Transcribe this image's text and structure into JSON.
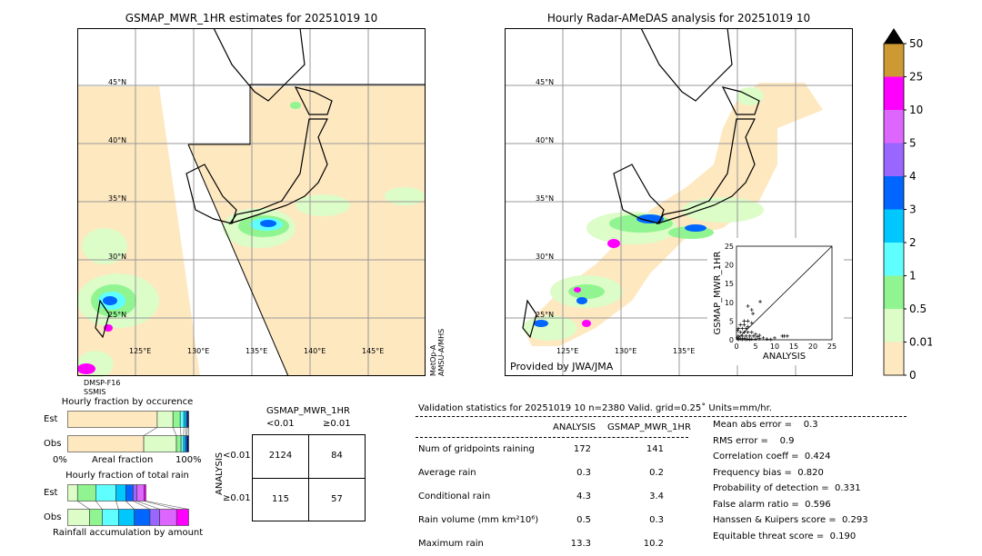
{
  "left_map": {
    "title": "GSMAP_MWR_1HR estimates for 20251019 10",
    "lat_labels": [
      "45°N",
      "40°N",
      "35°N",
      "30°N",
      "25°N"
    ],
    "lon_labels": [
      "125°E",
      "130°E",
      "135°E",
      "140°E",
      "145°E"
    ],
    "sensor_left": [
      "DMSP-F16",
      "SSMIS"
    ],
    "sensor_right": [
      "MetOp-A",
      "AMSU-A/MHS"
    ]
  },
  "right_map": {
    "title": "Hourly Radar-AMeDAS analysis for 20251019 10",
    "lat_labels": [
      "45°N",
      "40°N",
      "35°N",
      "30°N",
      "25°N"
    ],
    "lon_labels": [
      "125°E",
      "130°E",
      "135°E"
    ],
    "credit": "Provided by JWA/JMA"
  },
  "colorbar": {
    "levels": [
      "0",
      "0.01",
      "0.5",
      "1",
      "2",
      "3",
      "4",
      "5",
      "10",
      "25",
      "50"
    ],
    "colors": [
      "#fee8c0",
      "#dcfcc8",
      "#90f590",
      "#60ffff",
      "#00c8ff",
      "#0066ff",
      "#9966ff",
      "#dd66ff",
      "#ff00ff",
      "#cc9933"
    ],
    "extend_color": "#000000"
  },
  "chart_data": [
    {
      "type": "scatter",
      "xlabel": "ANALYSIS",
      "ylabel": "GSMAP_MWR_1HR",
      "xlim": [
        0,
        25
      ],
      "ylim": [
        0,
        25
      ],
      "xticks": [
        "0",
        "5",
        "10",
        "15",
        "20",
        "25"
      ],
      "yticks": [
        "0",
        "5",
        "10",
        "15",
        "20",
        "25"
      ],
      "points": [
        [
          6.2,
          10.2
        ],
        [
          3,
          9
        ],
        [
          4,
          8
        ],
        [
          4.3,
          7
        ],
        [
          2,
          5
        ],
        [
          3,
          5
        ],
        [
          4,
          4.5
        ],
        [
          1,
          4
        ],
        [
          2,
          4
        ],
        [
          3,
          3.5
        ],
        [
          0.5,
          3
        ],
        [
          1.5,
          3
        ],
        [
          2.5,
          3
        ],
        [
          0.3,
          2.5
        ],
        [
          1,
          2
        ],
        [
          2,
          2
        ],
        [
          3,
          2
        ],
        [
          4,
          2
        ],
        [
          5,
          1.5
        ],
        [
          6,
          1.2
        ],
        [
          0.5,
          1
        ],
        [
          1.5,
          1
        ],
        [
          2.5,
          1
        ],
        [
          3.5,
          1
        ],
        [
          4.5,
          1
        ],
        [
          5.5,
          0.8
        ],
        [
          7,
          0.5
        ],
        [
          0.2,
          0.5
        ],
        [
          1,
          0.3
        ],
        [
          2,
          0.3
        ],
        [
          3,
          0.2
        ],
        [
          4,
          0.2
        ],
        [
          5,
          0.2
        ],
        [
          6,
          0.3
        ],
        [
          8,
          0.2
        ],
        [
          10,
          0.5
        ],
        [
          12,
          1
        ],
        [
          12.5,
          1
        ],
        [
          13.3,
          1
        ],
        [
          0.5,
          0.1
        ],
        [
          1.5,
          0.1
        ],
        [
          2.5,
          0.1
        ],
        [
          3.5,
          0.1
        ],
        [
          9,
          0.1
        ]
      ]
    },
    {
      "type": "bar",
      "title": "Hourly fraction by occurence",
      "xlabel": "Areal fraction",
      "xtick_left": "0%",
      "xtick_right": "100%",
      "categories": [
        "Est",
        "Obs"
      ],
      "series": [
        {
          "values": [
            0.74,
            0.744
          ]
        },
        {
          "values": [
            0.13,
            0.32
          ]
        },
        {
          "values": [
            0.06,
            0.045
          ]
        },
        {
          "values": [
            0.03,
            0.025
          ]
        },
        {
          "values": [
            0.02,
            0.02
          ]
        },
        {
          "values": [
            0.01,
            0.015
          ]
        },
        {
          "values": [
            0.01,
            0.015
          ]
        }
      ]
    },
    {
      "type": "bar",
      "title": "Hourly fraction of total rain",
      "xlabel": "Rainfall accumulation by amount",
      "categories": [
        "Est",
        "Obs"
      ],
      "series": [
        {
          "values": [
            0.08,
            0.18
          ]
        },
        {
          "values": [
            0.15,
            0.105
          ]
        },
        {
          "values": [
            0.165,
            0.135
          ]
        },
        {
          "values": [
            0.08,
            0.13
          ]
        },
        {
          "values": [
            0.06,
            0.13
          ]
        },
        {
          "values": [
            0.03,
            0.08
          ]
        },
        {
          "values": [
            0.06,
            0.14
          ]
        },
        {
          "values": [
            0.015,
            0.1
          ]
        }
      ]
    }
  ],
  "contingency": {
    "title": "GSMAP_MWR_1HR",
    "col_headers": [
      "<0.01",
      "≥0.01"
    ],
    "row_axis": "ANALYSIS",
    "row_headers": [
      "<0.01",
      "≥0.01"
    ],
    "cells": [
      [
        "2124",
        "84"
      ],
      [
        "115",
        "57"
      ]
    ]
  },
  "stats": {
    "header": "Validation statistics for 20251019 10  n=2380 Valid. grid=0.25˚ Units=mm/hr.",
    "col_headers": [
      "ANALYSIS",
      "GSMAP_MWR_1HR"
    ],
    "rows": [
      {
        "label": "Num of gridpoints raining",
        "a": "172",
        "b": "141"
      },
      {
        "label": "Average rain",
        "a": "0.3",
        "b": "0.2"
      },
      {
        "label": "Conditional rain",
        "a": "4.3",
        "b": "3.4"
      },
      {
        "label": "Rain volume (mm km²10⁶)",
        "a": "0.5",
        "b": "0.3"
      },
      {
        "label": "Maximum rain",
        "a": "13.3",
        "b": "10.2"
      }
    ],
    "scores": [
      "Mean abs error =    0.3",
      "RMS error =    0.9",
      "Correlation coeff =  0.424",
      "Frequency bias =  0.820",
      "Probability of detection =  0.331",
      "False alarm ratio =  0.596",
      "Hanssen & Kuipers score =  0.293",
      "Equitable threat score =  0.190"
    ]
  }
}
